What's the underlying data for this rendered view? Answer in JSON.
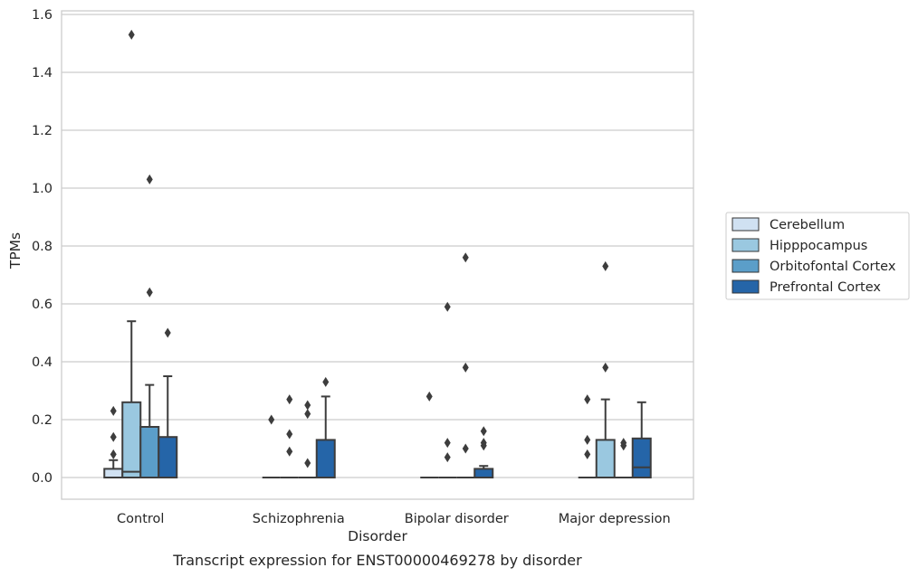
{
  "caption": "Transcript expression for ENST00000469278 by disorder",
  "chart_data": {
    "type": "box",
    "xlabel": "Disorder",
    "ylabel": "TPMs",
    "ylim": [
      -0.07,
      1.61
    ],
    "yticks": [
      "0.0",
      "0.2",
      "0.4",
      "0.6",
      "0.8",
      "1.0",
      "1.2",
      "1.4",
      "1.6"
    ],
    "categories": [
      "Control",
      "Schizophrenia",
      "Bipolar disorder",
      "Major depression"
    ],
    "grid": true,
    "legend_position": "right",
    "series": [
      {
        "name": "Cerebellum",
        "color": "#d0e1f2",
        "boxes": [
          {
            "q1": 0,
            "median": 0,
            "q3": 0.03,
            "whisker_low": 0,
            "whisker_high": 0.06,
            "outliers": [
              0.23,
              0.14,
              0.08
            ]
          },
          {
            "q1": 0,
            "median": 0,
            "q3": 0,
            "whisker_low": 0,
            "whisker_high": 0,
            "outliers": [
              0.2
            ]
          },
          {
            "q1": 0,
            "median": 0,
            "q3": 0,
            "whisker_low": 0,
            "whisker_high": 0,
            "outliers": [
              0.28
            ]
          },
          {
            "q1": 0,
            "median": 0,
            "q3": 0,
            "whisker_low": 0,
            "whisker_high": 0,
            "outliers": [
              0.27,
              0.13,
              0.08
            ]
          }
        ]
      },
      {
        "name": "Hipppocampus",
        "color": "#9ac8e0",
        "boxes": [
          {
            "q1": 0,
            "median": 0.02,
            "q3": 0.26,
            "whisker_low": 0,
            "whisker_high": 0.54,
            "outliers": [
              1.53
            ]
          },
          {
            "q1": 0,
            "median": 0,
            "q3": 0,
            "whisker_low": 0,
            "whisker_high": 0,
            "outliers": [
              0.27,
              0.15,
              0.09
            ]
          },
          {
            "q1": 0,
            "median": 0,
            "q3": 0,
            "whisker_low": 0,
            "whisker_high": 0,
            "outliers": [
              0.59,
              0.12,
              0.07
            ]
          },
          {
            "q1": 0,
            "median": 0,
            "q3": 0.13,
            "whisker_low": 0,
            "whisker_high": 0.27,
            "outliers": [
              0.73,
              0.38
            ]
          }
        ]
      },
      {
        "name": "Orbitofontal Cortex",
        "color": "#5b9ec9",
        "boxes": [
          {
            "q1": 0,
            "median": 0,
            "q3": 0.175,
            "whisker_low": 0,
            "whisker_high": 0.32,
            "outliers": [
              1.03,
              0.64
            ]
          },
          {
            "q1": 0,
            "median": 0,
            "q3": 0,
            "whisker_low": 0,
            "whisker_high": 0,
            "outliers": [
              0.25,
              0.22,
              0.05
            ]
          },
          {
            "q1": 0,
            "median": 0,
            "q3": 0,
            "whisker_low": 0,
            "whisker_high": 0,
            "outliers": [
              0.76,
              0.38,
              0.1
            ]
          },
          {
            "q1": 0,
            "median": 0,
            "q3": 0,
            "whisker_low": 0,
            "whisker_high": 0,
            "outliers": [
              0.12,
              0.11
            ]
          }
        ]
      },
      {
        "name": "Prefrontal Cortex",
        "color": "#2565a8",
        "boxes": [
          {
            "q1": 0,
            "median": 0,
            "q3": 0.14,
            "whisker_low": 0,
            "whisker_high": 0.35,
            "outliers": [
              0.5
            ]
          },
          {
            "q1": 0,
            "median": 0,
            "q3": 0.13,
            "whisker_low": 0,
            "whisker_high": 0.28,
            "outliers": [
              0.33
            ]
          },
          {
            "q1": 0,
            "median": 0,
            "q3": 0.03,
            "whisker_low": 0,
            "whisker_high": 0.04,
            "outliers": [
              0.16,
              0.12,
              0.11
            ]
          },
          {
            "q1": 0,
            "median": 0.035,
            "q3": 0.135,
            "whisker_low": 0,
            "whisker_high": 0.26,
            "outliers": []
          }
        ]
      }
    ]
  }
}
